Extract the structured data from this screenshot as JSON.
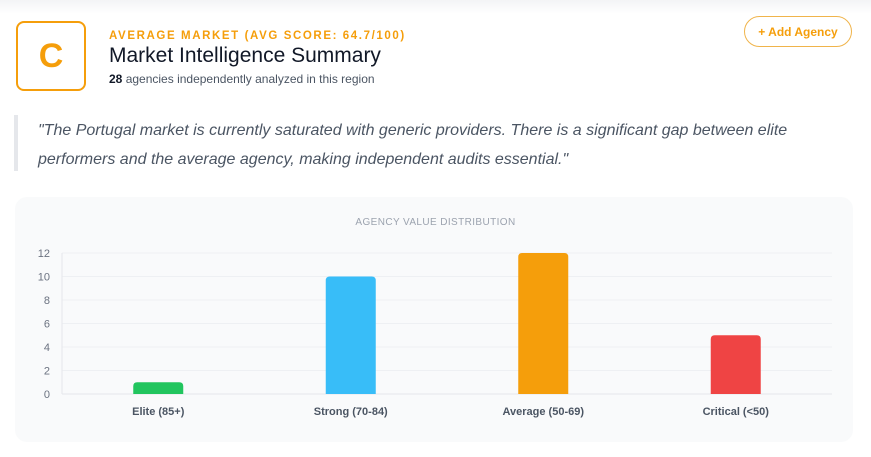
{
  "header": {
    "grade": "C",
    "kicker": "AVERAGE MARKET (AVG SCORE: 64.7/100)",
    "title": "Market Intelligence Summary",
    "agency_count": "28",
    "subtitle_rest": " agencies independently analyzed in this region",
    "add_button": "+ Add Agency"
  },
  "quote": "\"The Portugal market is currently saturated with generic providers. There is a significant gap between elite performers and the average agency, making independent audits essential.\"",
  "chart_data": {
    "type": "bar",
    "title": "AGENCY VALUE DISTRIBUTION",
    "categories": [
      "Elite (85+)",
      "Strong (70-84)",
      "Average (50-69)",
      "Critical (<50)"
    ],
    "values": [
      1,
      10,
      12,
      5
    ],
    "colors": [
      "#22c55e",
      "#38bdf8",
      "#f59e0b",
      "#ef4444"
    ],
    "ylim": [
      0,
      12
    ],
    "yticks": [
      0,
      2,
      4,
      6,
      8,
      10,
      12
    ],
    "xlabel": "",
    "ylabel": "",
    "grid": true
  }
}
